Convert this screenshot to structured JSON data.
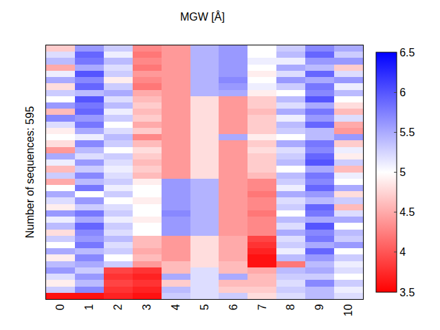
{
  "chart_data": {
    "type": "heatmap",
    "title": "MGW [Å]",
    "y_label": "Number of sequences: 595",
    "x": [
      0,
      1,
      2,
      3,
      4,
      5,
      6,
      7,
      8,
      9,
      10
    ],
    "xlim": [
      -0.5,
      10.5
    ],
    "xticks": [
      0,
      1,
      2,
      3,
      4,
      5,
      6,
      7,
      8,
      9,
      10
    ],
    "tick_labels": "x",
    "grid": false,
    "colorscale": [
      "#ff0000",
      "#ffffff",
      "#0000ff"
    ],
    "zlim": [
      3.5,
      6.5
    ],
    "zticks": [
      3.5,
      4,
      4.5,
      5,
      5.5,
      6,
      6.5
    ],
    "cells": [
      [
        4.7,
        5.6,
        5.3,
        4.3,
        4.4,
        5.45,
        5.6,
        5.0,
        5.3,
        5.7,
        5.5
      ],
      [
        5.2,
        5.9,
        5.1,
        4.2,
        4.4,
        5.45,
        5.6,
        5.0,
        5.4,
        5.9,
        5.3
      ],
      [
        5.4,
        5.8,
        5.4,
        4.3,
        4.4,
        5.45,
        5.6,
        5.1,
        5.1,
        5.6,
        5.6
      ],
      [
        4.5,
        5.5,
        5.2,
        4.2,
        4.4,
        5.45,
        5.6,
        5.0,
        5.5,
        5.4,
        4.7
      ],
      [
        5.1,
        6.0,
        5.3,
        4.4,
        4.4,
        5.45,
        5.6,
        4.9,
        5.2,
        5.9,
        5.2
      ],
      [
        5.5,
        5.7,
        4.9,
        4.3,
        4.4,
        5.45,
        5.7,
        5.0,
        5.6,
        5.5,
        5.6
      ],
      [
        4.8,
        5.9,
        5.3,
        4.2,
        4.4,
        5.45,
        5.6,
        5.1,
        5.3,
        5.8,
        5.1
      ],
      [
        5.3,
        5.4,
        5.5,
        4.5,
        4.4,
        5.45,
        5.5,
        4.9,
        5.0,
        5.7,
        5.4
      ],
      [
        5.0,
        6.0,
        5.2,
        4.6,
        4.4,
        4.8,
        4.4,
        4.7,
        5.4,
        6.0,
        5.0
      ],
      [
        5.6,
        5.8,
        5.4,
        4.7,
        4.4,
        4.8,
        4.4,
        4.7,
        5.2,
        5.5,
        4.8
      ],
      [
        4.6,
        5.9,
        5.1,
        4.6,
        4.4,
        4.8,
        4.4,
        4.6,
        5.5,
        5.8,
        4.6
      ],
      [
        5.7,
        5.6,
        5.3,
        4.7,
        4.4,
        4.8,
        4.4,
        4.7,
        5.1,
        5.6,
        5.2
      ],
      [
        5.2,
        5.8,
        5.0,
        4.5,
        4.4,
        4.8,
        4.4,
        4.7,
        5.4,
        5.9,
        4.5
      ],
      [
        4.9,
        5.5,
        5.2,
        4.7,
        4.4,
        4.8,
        4.4,
        4.7,
        5.3,
        5.4,
        4.4
      ],
      [
        5.0,
        5.1,
        5.4,
        4.3,
        4.4,
        4.8,
        5.5,
        4.9,
        5.0,
        5.4,
        5.6
      ],
      [
        4.8,
        5.7,
        5.3,
        4.6,
        4.4,
        4.8,
        4.4,
        4.7,
        5.5,
        5.8,
        4.7
      ],
      [
        4.4,
        5.4,
        5.0,
        4.8,
        4.4,
        4.8,
        4.4,
        4.8,
        5.2,
        5.7,
        5.1
      ],
      [
        5.5,
        5.2,
        5.3,
        4.7,
        4.4,
        4.8,
        4.4,
        4.7,
        5.3,
        5.9,
        4.9
      ],
      [
        5.1,
        5.6,
        5.2,
        4.6,
        4.4,
        4.8,
        4.4,
        4.7,
        5.4,
        6.0,
        5.3
      ],
      [
        4.6,
        5.3,
        5.1,
        4.7,
        4.4,
        4.8,
        4.4,
        4.7,
        5.0,
        5.5,
        4.6
      ],
      [
        5.3,
        5.7,
        5.2,
        4.6,
        4.4,
        4.8,
        4.4,
        4.6,
        5.4,
        5.8,
        5.1
      ],
      [
        4.5,
        5.4,
        5.3,
        4.9,
        5.6,
        5.45,
        4.4,
        4.3,
        5.3,
        5.7,
        5.0
      ],
      [
        5.0,
        5.8,
        5.1,
        5.0,
        5.6,
        5.45,
        4.4,
        4.3,
        5.1,
        5.9,
        5.5
      ],
      [
        5.5,
        5.0,
        5.3,
        5.0,
        5.6,
        5.45,
        4.4,
        4.2,
        5.5,
        5.6,
        4.8
      ],
      [
        5.2,
        5.6,
        5.0,
        4.9,
        5.6,
        5.45,
        4.4,
        4.3,
        5.2,
        5.4,
        5.3
      ],
      [
        4.9,
        5.3,
        5.2,
        5.0,
        5.6,
        5.45,
        4.4,
        4.3,
        5.3,
        5.9,
        4.6
      ],
      [
        5.6,
        5.8,
        5.3,
        5.0,
        5.7,
        5.45,
        4.4,
        4.2,
        5.0,
        5.8,
        5.2
      ],
      [
        5.1,
        5.5,
        5.1,
        4.9,
        5.6,
        5.45,
        4.4,
        4.3,
        5.4,
        5.5,
        5.5
      ],
      [
        5.4,
        5.9,
        5.3,
        5.0,
        5.6,
        5.45,
        4.4,
        4.3,
        5.2,
        6.0,
        5.0
      ],
      [
        4.8,
        5.7,
        5.2,
        5.0,
        5.6,
        5.45,
        4.4,
        4.3,
        5.5,
        5.7,
        5.4
      ],
      [
        5.3,
        5.6,
        5.4,
        4.6,
        4.4,
        4.8,
        4.5,
        3.9,
        5.2,
        5.8,
        5.3
      ],
      [
        5.0,
        5.8,
        5.2,
        4.6,
        4.4,
        4.8,
        4.5,
        3.8,
        5.3,
        5.5,
        5.6
      ],
      [
        5.5,
        5.4,
        5.3,
        4.5,
        4.4,
        4.8,
        4.5,
        3.7,
        5.1,
        5.9,
        5.0
      ],
      [
        4.9,
        5.7,
        5.0,
        4.6,
        4.4,
        4.8,
        4.5,
        3.6,
        5.4,
        5.6,
        5.3
      ],
      [
        5.4,
        5.5,
        5.3,
        4.4,
        4.6,
        4.8,
        4.6,
        3.6,
        4.2,
        5.4,
        5.1
      ],
      [
        5.6,
        5.3,
        3.9,
        3.8,
        4.6,
        5.2,
        4.6,
        4.5,
        5.4,
        5.5,
        5.2
      ],
      [
        5.2,
        5.6,
        3.8,
        3.7,
        5.5,
        5.2,
        5.5,
        4.6,
        5.3,
        5.3,
        5.0
      ],
      [
        4.9,
        5.4,
        3.9,
        3.8,
        4.7,
        5.2,
        4.6,
        4.6,
        5.2,
        5.7,
        5.3
      ],
      [
        5.3,
        5.7,
        3.8,
        3.7,
        5.4,
        5.2,
        4.7,
        4.7,
        5.3,
        5.4,
        5.1
      ],
      [
        3.6,
        3.6,
        3.7,
        3.6,
        5.3,
        5.2,
        5.3,
        4.8,
        5.2,
        5.4,
        5.2
      ]
    ]
  }
}
